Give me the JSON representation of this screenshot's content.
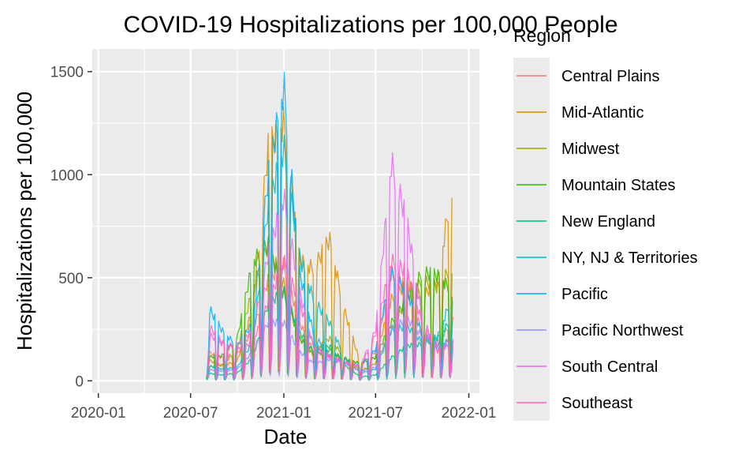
{
  "chart_data": {
    "type": "line",
    "title": "COVID-19 Hospitalizations per 100,000 People",
    "xlabel": "Date",
    "ylabel": "Hospitalizations per 100,000",
    "x_ticks": [
      "2020-01",
      "2020-07",
      "2021-01",
      "2021-07",
      "2022-01"
    ],
    "y_ticks": [
      0,
      500,
      1000,
      1500
    ],
    "xlim": [
      "2019-12-20",
      "2022-01-22"
    ],
    "ylim": [
      -60,
      1610
    ],
    "grid": true,
    "legend_title": "Region",
    "legend_position": "right",
    "x_dates": [
      "2020-08-01",
      "2020-09-01",
      "2020-10-01",
      "2020-11-01",
      "2020-12-01",
      "2021-01-01",
      "2021-02-01",
      "2021-03-01",
      "2021-04-01",
      "2021-05-01",
      "2021-06-01",
      "2021-07-01",
      "2021-08-01",
      "2021-09-01",
      "2021-10-01",
      "2021-11-01",
      "2021-12-01"
    ],
    "series": [
      {
        "name": "Central Plains",
        "color": "#F8766D",
        "values": [
          150,
          120,
          140,
          260,
          520,
          600,
          300,
          150,
          130,
          110,
          90,
          150,
          560,
          480,
          250,
          200,
          310
        ]
      },
      {
        "name": "Mid-Atlantic",
        "color": "#D89000",
        "values": [
          110,
          80,
          100,
          380,
          1200,
          1330,
          620,
          580,
          730,
          360,
          90,
          120,
          420,
          500,
          430,
          520,
          1050
        ]
      },
      {
        "name": "Midwest",
        "color": "#A3A500",
        "values": [
          70,
          80,
          160,
          480,
          700,
          500,
          220,
          150,
          220,
          120,
          50,
          90,
          260,
          420,
          520,
          480,
          600
        ]
      },
      {
        "name": "Mountain States",
        "color": "#39B600",
        "values": [
          120,
          130,
          220,
          620,
          700,
          450,
          220,
          130,
          160,
          110,
          90,
          120,
          300,
          420,
          560,
          540,
          460
        ]
      },
      {
        "name": "New England",
        "color": "#00BF7D",
        "values": [
          40,
          30,
          40,
          120,
          400,
          460,
          250,
          150,
          180,
          80,
          20,
          30,
          120,
          180,
          190,
          220,
          330
        ]
      },
      {
        "name": "NY, NJ & Territories",
        "color": "#00BFC4",
        "values": [
          80,
          60,
          70,
          200,
          900,
          1200,
          640,
          420,
          300,
          120,
          40,
          60,
          260,
          280,
          200,
          230,
          450
        ]
      },
      {
        "name": "Pacific",
        "color": "#00B0F6",
        "values": [
          400,
          260,
          180,
          300,
          1050,
          1520,
          560,
          240,
          130,
          90,
          80,
          160,
          560,
          460,
          240,
          180,
          220
        ]
      },
      {
        "name": "Pacific Northwest",
        "color": "#9590FF",
        "values": [
          60,
          50,
          60,
          150,
          300,
          300,
          150,
          90,
          110,
          90,
          50,
          70,
          270,
          320,
          230,
          190,
          170
        ]
      },
      {
        "name": "South Central",
        "color": "#E76BF3",
        "values": [
          250,
          190,
          180,
          260,
          650,
          950,
          460,
          170,
          120,
          90,
          80,
          260,
          1130,
          820,
          320,
          160,
          190
        ]
      },
      {
        "name": "Southeast",
        "color": "#FF62BC",
        "values": [
          300,
          200,
          160,
          200,
          400,
          620,
          400,
          180,
          130,
          100,
          70,
          240,
          620,
          560,
          300,
          150,
          230
        ]
      }
    ]
  }
}
